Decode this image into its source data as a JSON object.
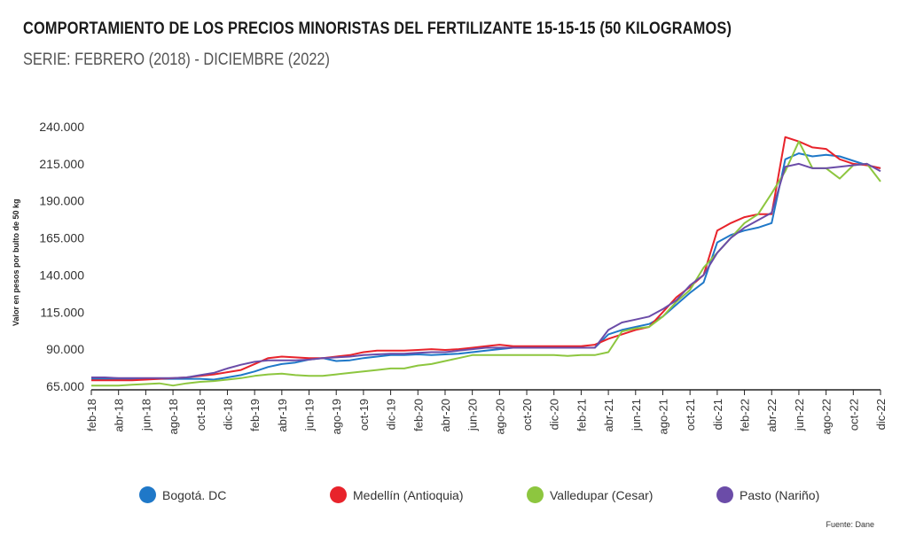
{
  "chart_data": {
    "type": "line",
    "title": "COMPORTAMIENTO DE LOS PRECIOS MINORISTAS DEL FERTILIZANTE 15-15-15 (50 KILOGRAMOS)",
    "subtitle": "SERIE: FEBRERO (2018) - DICIEMBRE (2022)",
    "ylabel": "Valor en pesos por bulto de 50 kg",
    "xlabel": "",
    "ylim": [
      65000,
      240000
    ],
    "yticks": [
      65000,
      90000,
      115000,
      140000,
      165000,
      190000,
      215000,
      240000
    ],
    "ytick_labels": [
      "65.000",
      "90.000",
      "115.000",
      "140.000",
      "165.000",
      "190.000",
      "215.000",
      "240.000"
    ],
    "x_tick_labels": [
      "feb-18",
      "abr-18",
      "jun-18",
      "ago-18",
      "oct-18",
      "dic-18",
      "feb-19",
      "abr-19",
      "jun-19",
      "ago-19",
      "oct-19",
      "dic-19",
      "feb-20",
      "abr-20",
      "jun-20",
      "ago-20",
      "oct-20",
      "dic-20",
      "feb-21",
      "abr-21",
      "jun-21",
      "ago-21",
      "oct-21",
      "dic-21",
      "feb-22",
      "abr-22",
      "jun-22",
      "ago-22",
      "oct-22",
      "dic-22"
    ],
    "x_tick_indices": [
      0,
      2,
      4,
      6,
      8,
      10,
      12,
      14,
      16,
      18,
      20,
      22,
      24,
      26,
      28,
      30,
      32,
      34,
      36,
      38,
      40,
      42,
      44,
      46,
      48,
      50,
      52,
      54,
      56,
      58
    ],
    "n_points": 59,
    "series": [
      {
        "name": "Bogotá. DC",
        "color": "#1f78c8",
        "values": [
          70000,
          70000,
          70000,
          70000,
          70000,
          70000,
          70000,
          70000,
          70000,
          69500,
          71000,
          72500,
          75000,
          78000,
          80000,
          81000,
          83000,
          84000,
          82000,
          82500,
          84000,
          85000,
          86000,
          86000,
          86500,
          86000,
          86500,
          87000,
          88000,
          89000,
          90000,
          91000,
          91000,
          91000,
          91000,
          91000,
          91000,
          91000,
          100000,
          103000,
          105000,
          107000,
          112000,
          120000,
          128000,
          135000,
          162000,
          167000,
          170000,
          172000,
          175000,
          218000,
          222000,
          220000,
          221000,
          220000,
          217000,
          214000,
          212000
        ]
      },
      {
        "name": "Medellín (Antioquia)",
        "color": "#e8232b",
        "values": [
          69000,
          69000,
          69000,
          69000,
          69500,
          70000,
          70500,
          71000,
          72000,
          73000,
          74500,
          76000,
          80000,
          84000,
          85000,
          84500,
          84000,
          84000,
          85000,
          86000,
          88000,
          89000,
          89000,
          89000,
          89500,
          90000,
          89500,
          90000,
          91000,
          92000,
          93000,
          92000,
          92000,
          92000,
          92000,
          92000,
          92000,
          93000,
          97000,
          100000,
          103000,
          105000,
          115000,
          125000,
          132000,
          140000,
          170000,
          175000,
          179000,
          181000,
          181000,
          233000,
          230000,
          226000,
          225000,
          218000,
          215000,
          214000,
          212000
        ]
      },
      {
        "name": "Valledupar (Cesar)",
        "color": "#8dc63f",
        "values": [
          65500,
          65500,
          65500,
          66000,
          66500,
          67000,
          65500,
          67000,
          68000,
          68500,
          69500,
          70500,
          72000,
          73000,
          73500,
          72500,
          72000,
          72000,
          73000,
          74000,
          75000,
          76000,
          77000,
          77000,
          79000,
          80000,
          82000,
          84000,
          86000,
          86000,
          86000,
          86000,
          86000,
          86000,
          86000,
          85500,
          86000,
          86000,
          88000,
          102000,
          104000,
          105000,
          112000,
          122000,
          130000,
          145000,
          155000,
          165000,
          175000,
          181000,
          195000,
          210000,
          230000,
          212000,
          212000,
          205000,
          214000,
          215000,
          203000
        ]
      },
      {
        "name": "Pasto (Nariño)",
        "color": "#6b4ca8",
        "values": [
          71000,
          71000,
          70500,
          70500,
          70500,
          70500,
          70500,
          71000,
          72500,
          74000,
          77000,
          79500,
          81500,
          82500,
          82500,
          82500,
          83000,
          84000,
          84500,
          85000,
          86000,
          86500,
          87000,
          87000,
          87500,
          88000,
          88000,
          89000,
          90000,
          91000,
          91000,
          91000,
          91000,
          91000,
          91000,
          91000,
          91000,
          91000,
          103000,
          108000,
          110000,
          112000,
          117000,
          123000,
          133000,
          140000,
          155000,
          165000,
          172000,
          177000,
          182000,
          213000,
          215000,
          212000,
          212000,
          213000,
          214000,
          215000,
          210000
        ]
      }
    ]
  },
  "legend": [
    {
      "label": "Bogotá. DC",
      "color": "#1f78c8"
    },
    {
      "label": "Medellín (Antioquia)",
      "color": "#e8232b"
    },
    {
      "label": "Valledupar (Cesar)",
      "color": "#8dc63f"
    },
    {
      "label": "Pasto (Nariño)",
      "color": "#6b4ca8"
    }
  ],
  "source": "Fuente: Dane"
}
